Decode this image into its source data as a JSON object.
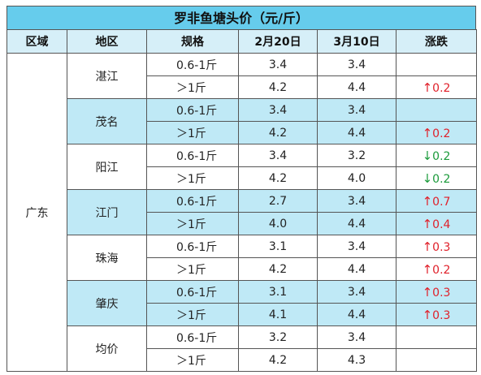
{
  "title": "罗非鱼塘头价（元/斤）",
  "headers": [
    "区域",
    "地区",
    "规格",
    "2月20日",
    "3月10日",
    "涨跌"
  ],
  "region": "广东",
  "groups": [
    {
      "area": "湛江",
      "shaded": false,
      "rows": [
        {
          "spec": "0.6-1斤",
          "feb": "3.4",
          "mar": "3.4",
          "dir": "",
          "chg": ""
        },
        {
          "spec": "＞1斤",
          "feb": "4.2",
          "mar": "4.4",
          "dir": "up",
          "chg": "0.2"
        }
      ]
    },
    {
      "area": "茂名",
      "shaded": true,
      "rows": [
        {
          "spec": "0.6-1斤",
          "feb": "3.4",
          "mar": "3.4",
          "dir": "",
          "chg": ""
        },
        {
          "spec": "＞1斤",
          "feb": "4.2",
          "mar": "4.4",
          "dir": "up",
          "chg": "0.2"
        }
      ]
    },
    {
      "area": "阳江",
      "shaded": false,
      "rows": [
        {
          "spec": "0.6-1斤",
          "feb": "3.4",
          "mar": "3.2",
          "dir": "down",
          "chg": "0.2"
        },
        {
          "spec": "＞1斤",
          "feb": "4.2",
          "mar": "4.0",
          "dir": "down",
          "chg": "0.2"
        }
      ]
    },
    {
      "area": "江门",
      "shaded": true,
      "rows": [
        {
          "spec": "0.6-1斤",
          "feb": "2.7",
          "mar": "3.4",
          "dir": "up",
          "chg": "0.7"
        },
        {
          "spec": "＞1斤",
          "feb": "4.0",
          "mar": "4.4",
          "dir": "up",
          "chg": "0.4"
        }
      ]
    },
    {
      "area": "珠海",
      "shaded": false,
      "rows": [
        {
          "spec": "0.6-1斤",
          "feb": "3.1",
          "mar": "3.4",
          "dir": "up",
          "chg": "0.3"
        },
        {
          "spec": "＞1斤",
          "feb": "4.2",
          "mar": "4.4",
          "dir": "up",
          "chg": "0.2"
        }
      ]
    },
    {
      "area": "肇庆",
      "shaded": true,
      "rows": [
        {
          "spec": "0.6-1斤",
          "feb": "3.1",
          "mar": "3.4",
          "dir": "up",
          "chg": "0.3"
        },
        {
          "spec": "＞1斤",
          "feb": "4.1",
          "mar": "4.4",
          "dir": "up",
          "chg": "0.3"
        }
      ]
    },
    {
      "area": "均价",
      "shaded": false,
      "rows": [
        {
          "spec": "0.6-1斤",
          "feb": "3.2",
          "mar": "3.4",
          "dir": "",
          "chg": ""
        },
        {
          "spec": "＞1斤",
          "feb": "4.2",
          "mar": "4.3",
          "dir": "",
          "chg": ""
        }
      ]
    }
  ],
  "colors": {
    "title_bg": "#66ccec",
    "header_bg": "#d6eff8",
    "shade": "#bfe9f6",
    "up": "#e0202a",
    "down": "#1a9a3a"
  },
  "icons": {
    "up": "arrow-up-icon",
    "down": "arrow-down-icon"
  }
}
